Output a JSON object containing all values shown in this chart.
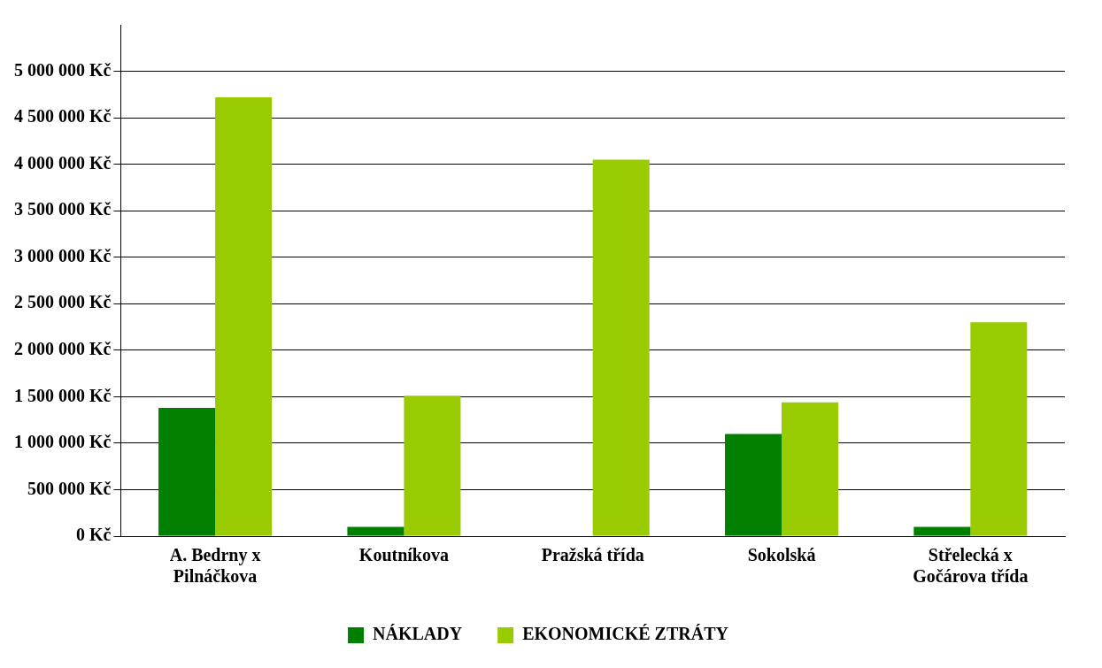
{
  "chart_data": {
    "type": "bar",
    "categories": [
      "A. Bedrny x Pilnáčkova",
      "Koutníkova",
      "Pražská třída",
      "Sokolská",
      "Střelecká x Gočárova třída"
    ],
    "series": [
      {
        "name": "NÁKLADY",
        "color": "#007f00",
        "values": [
          1380000,
          100000,
          0,
          1100000,
          100000
        ]
      },
      {
        "name": "EKONOMICKÉ ZTRÁTY",
        "color": "#99cc00",
        "values": [
          4720000,
          1510000,
          4050000,
          1440000,
          2300000
        ]
      }
    ],
    "ylim": [
      0,
      5500000
    ],
    "yticks": [
      {
        "value": 0,
        "label": "0 Kč"
      },
      {
        "value": 500000,
        "label": "500 000 Kč"
      },
      {
        "value": 1000000,
        "label": "1 000 000 Kč"
      },
      {
        "value": 1500000,
        "label": "1 500 000 Kč"
      },
      {
        "value": 2000000,
        "label": "2 000 000 Kč"
      },
      {
        "value": 2500000,
        "label": "2 500 000 Kč"
      },
      {
        "value": 3000000,
        "label": "3 000 000 Kč"
      },
      {
        "value": 3500000,
        "label": "3 500 000 Kč"
      },
      {
        "value": 4000000,
        "label": "4 000 000 Kč"
      },
      {
        "value": 4500000,
        "label": "4 500 000 Kč"
      },
      {
        "value": 5000000,
        "label": "5 000 000 Kč"
      }
    ],
    "grid": "y",
    "legend": "bottom"
  }
}
